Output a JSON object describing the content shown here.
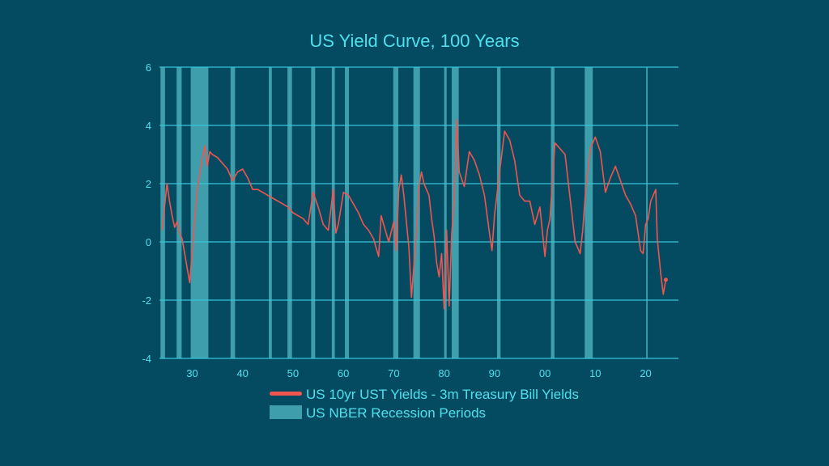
{
  "chart_data": {
    "type": "line",
    "title": "US Yield Curve, 100 Years",
    "xlim": [
      1923.5,
      2026.5
    ],
    "ylim": [
      -4,
      6
    ],
    "y_ticks": [
      -4,
      -2,
      0,
      2,
      4,
      6
    ],
    "y_tick_labels": [
      "-4",
      "-2",
      "0",
      "2",
      "4",
      "6"
    ],
    "x_ticks": [
      1930,
      1940,
      1950,
      1960,
      1970,
      1980,
      1990,
      2000,
      2010,
      2020
    ],
    "x_tick_labels": [
      "30",
      "40",
      "50",
      "60",
      "70",
      "80",
      "90",
      "00",
      "10",
      "20"
    ],
    "grid": true,
    "legend_position": "bottom",
    "colors": {
      "background": "#044a60",
      "line": "#f0554f",
      "recession": "#3e9eab",
      "grid": "#36c6d6",
      "text": "#4fe0ee"
    },
    "series": [
      {
        "name": "US 10yr UST Yields - 3m Treasury Bill Yields",
        "points": [
          [
            1924.0,
            0.4
          ],
          [
            1924.5,
            1.2
          ],
          [
            1925.0,
            2.0
          ],
          [
            1925.5,
            1.4
          ],
          [
            1926.0,
            0.9
          ],
          [
            1926.5,
            0.5
          ],
          [
            1927.0,
            0.7
          ],
          [
            1927.5,
            0.3
          ],
          [
            1928.0,
            0.1
          ],
          [
            1928.5,
            -0.4
          ],
          [
            1929.0,
            -0.9
          ],
          [
            1929.5,
            -1.4
          ],
          [
            1930.0,
            -0.3
          ],
          [
            1930.5,
            0.8
          ],
          [
            1931.0,
            1.8
          ],
          [
            1931.5,
            2.4
          ],
          [
            1932.0,
            2.9
          ],
          [
            1932.5,
            3.3
          ],
          [
            1933.0,
            2.6
          ],
          [
            1933.5,
            3.1
          ],
          [
            1934.0,
            3.0
          ],
          [
            1935.0,
            2.9
          ],
          [
            1936.0,
            2.7
          ],
          [
            1937.0,
            2.5
          ],
          [
            1938.0,
            2.1
          ],
          [
            1939.0,
            2.4
          ],
          [
            1940.0,
            2.5
          ],
          [
            1941.0,
            2.2
          ],
          [
            1942.0,
            1.8
          ],
          [
            1943.0,
            1.8
          ],
          [
            1944.0,
            1.7
          ],
          [
            1945.0,
            1.6
          ],
          [
            1946.0,
            1.5
          ],
          [
            1947.0,
            1.4
          ],
          [
            1948.0,
            1.3
          ],
          [
            1949.0,
            1.2
          ],
          [
            1950.0,
            1.0
          ],
          [
            1951.0,
            0.9
          ],
          [
            1952.0,
            0.8
          ],
          [
            1953.0,
            0.6
          ],
          [
            1954.0,
            1.7
          ],
          [
            1955.0,
            1.2
          ],
          [
            1956.0,
            0.6
          ],
          [
            1957.0,
            0.4
          ],
          [
            1958.0,
            1.8
          ],
          [
            1958.5,
            0.3
          ],
          [
            1959.0,
            0.6
          ],
          [
            1960.0,
            1.7
          ],
          [
            1961.0,
            1.6
          ],
          [
            1962.0,
            1.3
          ],
          [
            1963.0,
            1.0
          ],
          [
            1964.0,
            0.6
          ],
          [
            1965.0,
            0.4
          ],
          [
            1966.0,
            0.1
          ],
          [
            1967.0,
            -0.5
          ],
          [
            1967.5,
            0.9
          ],
          [
            1968.0,
            0.6
          ],
          [
            1969.0,
            0.0
          ],
          [
            1970.0,
            0.7
          ],
          [
            1970.5,
            -0.3
          ],
          [
            1971.0,
            1.8
          ],
          [
            1971.5,
            2.3
          ],
          [
            1972.0,
            1.6
          ],
          [
            1973.0,
            -0.2
          ],
          [
            1973.5,
            -1.9
          ],
          [
            1974.0,
            -0.8
          ],
          [
            1974.5,
            0.3
          ],
          [
            1975.0,
            1.9
          ],
          [
            1975.5,
            2.4
          ],
          [
            1976.0,
            2.0
          ],
          [
            1977.0,
            1.6
          ],
          [
            1977.5,
            0.8
          ],
          [
            1978.0,
            0.2
          ],
          [
            1978.5,
            -0.7
          ],
          [
            1979.0,
            -1.2
          ],
          [
            1979.5,
            -0.4
          ],
          [
            1980.0,
            -2.3
          ],
          [
            1980.5,
            0.4
          ],
          [
            1981.0,
            -2.2
          ],
          [
            1981.5,
            0.3
          ],
          [
            1982.0,
            1.5
          ],
          [
            1982.5,
            4.2
          ],
          [
            1983.0,
            2.4
          ],
          [
            1984.0,
            1.9
          ],
          [
            1985.0,
            3.1
          ],
          [
            1986.0,
            2.8
          ],
          [
            1987.0,
            2.3
          ],
          [
            1988.0,
            1.6
          ],
          [
            1989.0,
            0.3
          ],
          [
            1989.5,
            -0.3
          ],
          [
            1990.0,
            0.9
          ],
          [
            1991.0,
            2.4
          ],
          [
            1992.0,
            3.8
          ],
          [
            1993.0,
            3.5
          ],
          [
            1994.0,
            2.8
          ],
          [
            1995.0,
            1.6
          ],
          [
            1996.0,
            1.4
          ],
          [
            1997.0,
            1.4
          ],
          [
            1998.0,
            0.6
          ],
          [
            1999.0,
            1.2
          ],
          [
            2000.0,
            -0.5
          ],
          [
            2000.5,
            0.4
          ],
          [
            2001.0,
            0.8
          ],
          [
            2002.0,
            3.4
          ],
          [
            2003.0,
            3.2
          ],
          [
            2004.0,
            3.0
          ],
          [
            2005.0,
            1.5
          ],
          [
            2006.0,
            0.0
          ],
          [
            2007.0,
            -0.4
          ],
          [
            2007.5,
            0.4
          ],
          [
            2008.0,
            1.6
          ],
          [
            2009.0,
            3.2
          ],
          [
            2010.0,
            3.6
          ],
          [
            2011.0,
            3.1
          ],
          [
            2012.0,
            1.7
          ],
          [
            2013.0,
            2.2
          ],
          [
            2014.0,
            2.6
          ],
          [
            2015.0,
            2.1
          ],
          [
            2016.0,
            1.6
          ],
          [
            2017.0,
            1.3
          ],
          [
            2018.0,
            0.9
          ],
          [
            2019.0,
            -0.3
          ],
          [
            2019.5,
            -0.4
          ],
          [
            2020.0,
            0.6
          ],
          [
            2020.5,
            0.8
          ],
          [
            2021.0,
            1.4
          ],
          [
            2022.0,
            1.8
          ],
          [
            2022.3,
            0.1
          ],
          [
            2022.7,
            -0.6
          ],
          [
            2023.0,
            -1.1
          ],
          [
            2023.5,
            -1.8
          ],
          [
            2024.0,
            -1.3
          ]
        ]
      }
    ],
    "recessions": {
      "name": "US NBER Recession Periods",
      "periods": [
        [
          1923.7,
          1924.6
        ],
        [
          1926.9,
          1927.9
        ],
        [
          1929.7,
          1933.2
        ],
        [
          1937.6,
          1938.5
        ],
        [
          1945.2,
          1945.8
        ],
        [
          1948.9,
          1949.8
        ],
        [
          1953.6,
          1954.4
        ],
        [
          1957.7,
          1958.3
        ],
        [
          1960.3,
          1961.1
        ],
        [
          1969.9,
          1970.9
        ],
        [
          1973.9,
          1975.2
        ],
        [
          1980.0,
          1980.5
        ],
        [
          1981.5,
          1982.9
        ],
        [
          1990.5,
          1991.2
        ],
        [
          2001.2,
          2001.9
        ],
        [
          2007.9,
          2009.5
        ],
        [
          2020.1,
          2020.4
        ]
      ]
    }
  }
}
